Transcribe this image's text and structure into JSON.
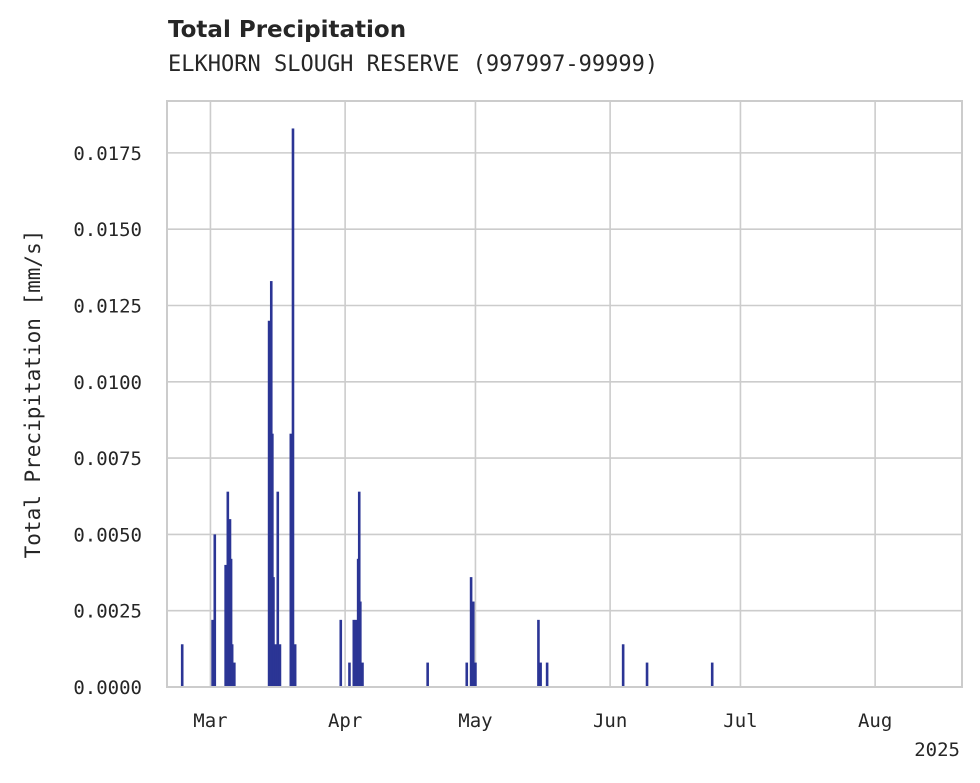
{
  "chart_data": {
    "type": "bar",
    "title": "Total Precipitation",
    "subtitle": "ELKHORN SLOUGH RESERVE (997997-99999)",
    "xlabel": "",
    "ylabel": "Total Precipitation [mm/s]",
    "ylim": [
      0,
      0.0192
    ],
    "xlim": [
      "2025-02-19",
      "2025-08-21"
    ],
    "year_label": "2025",
    "grid": true,
    "legend": "none",
    "bar_color": "#2b3595",
    "y_ticks": [
      {
        "value": 0.0,
        "label": "0.0000"
      },
      {
        "value": 0.0025,
        "label": "0.0025"
      },
      {
        "value": 0.005,
        "label": "0.0050"
      },
      {
        "value": 0.0075,
        "label": "0.0075"
      },
      {
        "value": 0.01,
        "label": "0.0100"
      },
      {
        "value": 0.0125,
        "label": "0.0125"
      },
      {
        "value": 0.015,
        "label": "0.0150"
      },
      {
        "value": 0.0175,
        "label": "0.0175"
      }
    ],
    "x_ticks": [
      {
        "date": "2025-03-01",
        "label": "Mar"
      },
      {
        "date": "2025-04-01",
        "label": "Apr"
      },
      {
        "date": "2025-05-01",
        "label": "May"
      },
      {
        "date": "2025-06-01",
        "label": "Jun"
      },
      {
        "date": "2025-07-01",
        "label": "Jul"
      },
      {
        "date": "2025-08-01",
        "label": "Aug"
      }
    ],
    "points": [
      {
        "date": "2025-02-22 12:00",
        "value": 0.0014
      },
      {
        "date": "2025-03-01 12:00",
        "value": 0.0022
      },
      {
        "date": "2025-03-02 00:00",
        "value": 0.005
      },
      {
        "date": "2025-03-04 12:00",
        "value": 0.004
      },
      {
        "date": "2025-03-05 00:00",
        "value": 0.0064
      },
      {
        "date": "2025-03-05 12:00",
        "value": 0.0055
      },
      {
        "date": "2025-03-05 18:00",
        "value": 0.0042
      },
      {
        "date": "2025-03-06 00:00",
        "value": 0.0014
      },
      {
        "date": "2025-03-06 12:00",
        "value": 0.0008
      },
      {
        "date": "2025-03-14 12:00",
        "value": 0.012
      },
      {
        "date": "2025-03-15 00:00",
        "value": 0.0133
      },
      {
        "date": "2025-03-15 06:00",
        "value": 0.0083
      },
      {
        "date": "2025-03-15 12:00",
        "value": 0.0036
      },
      {
        "date": "2025-03-16 00:00",
        "value": 0.0014
      },
      {
        "date": "2025-03-16 12:00",
        "value": 0.0064
      },
      {
        "date": "2025-03-17 00:00",
        "value": 0.0014
      },
      {
        "date": "2025-03-19 12:00",
        "value": 0.0083
      },
      {
        "date": "2025-03-20 00:00",
        "value": 0.0183
      },
      {
        "date": "2025-03-20 12:00",
        "value": 0.0014
      },
      {
        "date": "2025-03-31 00:00",
        "value": 0.0022
      },
      {
        "date": "2025-04-02 00:00",
        "value": 0.0008
      },
      {
        "date": "2025-04-03 00:00",
        "value": 0.0022
      },
      {
        "date": "2025-04-03 12:00",
        "value": 0.0022
      },
      {
        "date": "2025-04-04 00:00",
        "value": 0.0042
      },
      {
        "date": "2025-04-04 06:00",
        "value": 0.0064
      },
      {
        "date": "2025-04-04 12:00",
        "value": 0.0028
      },
      {
        "date": "2025-04-05 00:00",
        "value": 0.0008
      },
      {
        "date": "2025-04-20 00:00",
        "value": 0.0008
      },
      {
        "date": "2025-04-29 00:00",
        "value": 0.0008
      },
      {
        "date": "2025-04-30 00:00",
        "value": 0.0036
      },
      {
        "date": "2025-04-30 12:00",
        "value": 0.0028
      },
      {
        "date": "2025-05-01 00:00",
        "value": 0.0008
      },
      {
        "date": "2025-05-15 12:00",
        "value": 0.0022
      },
      {
        "date": "2025-05-16 00:00",
        "value": 0.0008
      },
      {
        "date": "2025-05-17 12:00",
        "value": 0.0008
      },
      {
        "date": "2025-06-04 00:00",
        "value": 0.0014
      },
      {
        "date": "2025-06-09 12:00",
        "value": 0.0008
      },
      {
        "date": "2025-06-24 12:00",
        "value": 0.0008
      }
    ]
  }
}
